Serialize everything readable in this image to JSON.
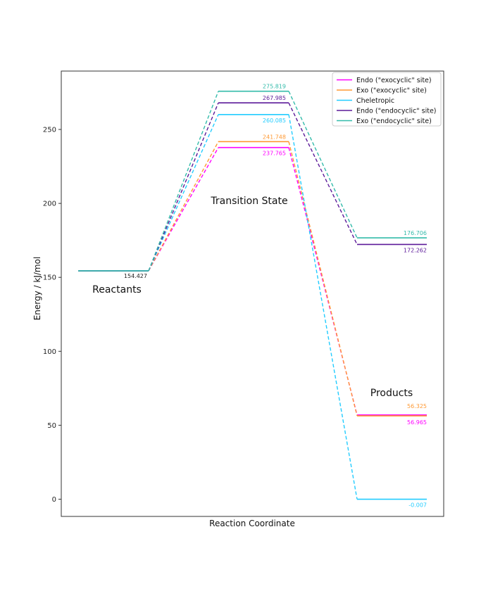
{
  "chart_data": {
    "type": "line",
    "title": "",
    "xlabel": "Reaction Coordinate",
    "ylabel": "Energy / kJ/mol",
    "ylim": [
      -13,
      286
    ],
    "yticks": [
      0,
      50,
      100,
      150,
      200,
      250
    ],
    "grid": false,
    "legend_position": "top-right",
    "stages": [
      "Reactants",
      "Transition State",
      "Products"
    ],
    "series": [
      {
        "name": "Endo (\"exocyclic\" site)",
        "color": "#ff00ff",
        "values": [
          154.427,
          237.765,
          56.965
        ]
      },
      {
        "name": "Exo (\"exocyclic\" site)",
        "color": "#ff9933",
        "values": [
          154.427,
          241.748,
          56.325
        ]
      },
      {
        "name": "Cheletropic",
        "color": "#22ccff",
        "values": [
          154.427,
          260.085,
          -0.007
        ]
      },
      {
        "name": "Endo (\"endocyclic\" site)",
        "color": "#5c1a99",
        "values": [
          154.427,
          267.985,
          172.262
        ]
      },
      {
        "name": "Exo (\"endocyclic\" site)",
        "color": "#33bbaa",
        "values": [
          154.427,
          275.819,
          176.706
        ]
      }
    ],
    "annotations": {
      "reactants_value": "154.427",
      "ts_values": [
        "275.819",
        "267.985",
        "260.085",
        "241.748",
        "237.765"
      ],
      "product_values": [
        "176.706",
        "172.262",
        "56.325",
        "56.965",
        "-0.007"
      ]
    }
  }
}
